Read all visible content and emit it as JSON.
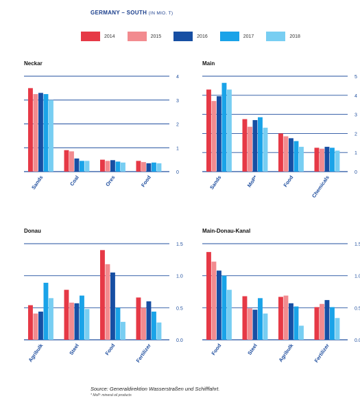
{
  "title": "GERMANY – SOUTH",
  "title_unit": "(IN MIO. T)",
  "legend": [
    {
      "name": "2014",
      "color": "#e63946"
    },
    {
      "name": "2015",
      "color": "#f28b8f"
    },
    {
      "name": "2016",
      "color": "#174fa3"
    },
    {
      "name": "2017",
      "color": "#1aa3e8"
    },
    {
      "name": "2018",
      "color": "#78cef2"
    }
  ],
  "source": "Source: Generaldirektion Wasserstraßen und Schifffahrt.",
  "footnote": "* MoP: mineral oil products",
  "chart_data": [
    {
      "type": "bar",
      "title": "Neckar",
      "categories": [
        "Sands",
        "Coal",
        "Ores",
        "Food"
      ],
      "ylim": [
        0,
        4
      ],
      "yticks": [
        "0",
        "1",
        "2",
        "3",
        "4"
      ],
      "series": [
        {
          "name": "2014",
          "values": [
            3.5,
            0.9,
            0.5,
            0.45
          ]
        },
        {
          "name": "2015",
          "values": [
            3.25,
            0.85,
            0.45,
            0.4
          ]
        },
        {
          "name": "2016",
          "values": [
            3.3,
            0.55,
            0.48,
            0.35
          ]
        },
        {
          "name": "2017",
          "values": [
            3.25,
            0.45,
            0.42,
            0.38
          ]
        },
        {
          "name": "2018",
          "values": [
            3.0,
            0.45,
            0.38,
            0.35
          ]
        }
      ]
    },
    {
      "type": "bar",
      "title": "Main",
      "categories": [
        "Sands",
        "MoP*",
        "Food",
        "Chemicals"
      ],
      "ylim": [
        0,
        5
      ],
      "yticks": [
        "0",
        "1",
        "2",
        "3",
        "4",
        "5"
      ],
      "series": [
        {
          "name": "2014",
          "values": [
            4.3,
            2.75,
            2.0,
            1.25
          ]
        },
        {
          "name": "2015",
          "values": [
            3.7,
            2.35,
            1.85,
            1.2
          ]
        },
        {
          "name": "2016",
          "values": [
            3.95,
            2.7,
            1.75,
            1.3
          ]
        },
        {
          "name": "2017",
          "values": [
            4.65,
            2.85,
            1.6,
            1.25
          ]
        },
        {
          "name": "2018",
          "values": [
            4.3,
            2.3,
            1.3,
            1.1
          ]
        }
      ]
    },
    {
      "type": "bar",
      "title": "Donau",
      "categories": [
        "Agribulk",
        "Steel",
        "Food",
        "Fertilizer"
      ],
      "ylim": [
        0,
        1.5
      ],
      "yticks": [
        "0.0",
        "0.5",
        "1.0",
        "1.5"
      ],
      "series": [
        {
          "name": "2014",
          "values": [
            0.54,
            0.78,
            1.4,
            0.66
          ]
        },
        {
          "name": "2015",
          "values": [
            0.41,
            0.58,
            1.18,
            0.5
          ]
        },
        {
          "name": "2016",
          "values": [
            0.44,
            0.57,
            1.05,
            0.6
          ]
        },
        {
          "name": "2017",
          "values": [
            0.89,
            0.69,
            0.5,
            0.44
          ]
        },
        {
          "name": "2018",
          "values": [
            0.65,
            0.48,
            0.28,
            0.27
          ]
        }
      ]
    },
    {
      "type": "bar",
      "title": "Main-Donau-Kanal",
      "categories": [
        "Food",
        "Steel",
        "Agribulk",
        "Fertilizer"
      ],
      "ylim": [
        0,
        1.5
      ],
      "yticks": [
        "0.0",
        "0.5",
        "1.0",
        "1.5"
      ],
      "series": [
        {
          "name": "2014",
          "values": [
            1.37,
            0.68,
            0.67,
            0.51
          ]
        },
        {
          "name": "2015",
          "values": [
            1.22,
            0.49,
            0.69,
            0.56
          ]
        },
        {
          "name": "2016",
          "values": [
            1.08,
            0.47,
            0.57,
            0.62
          ]
        },
        {
          "name": "2017",
          "values": [
            1.0,
            0.65,
            0.52,
            0.51
          ]
        },
        {
          "name": "2018",
          "values": [
            0.78,
            0.41,
            0.22,
            0.34
          ]
        }
      ]
    }
  ]
}
